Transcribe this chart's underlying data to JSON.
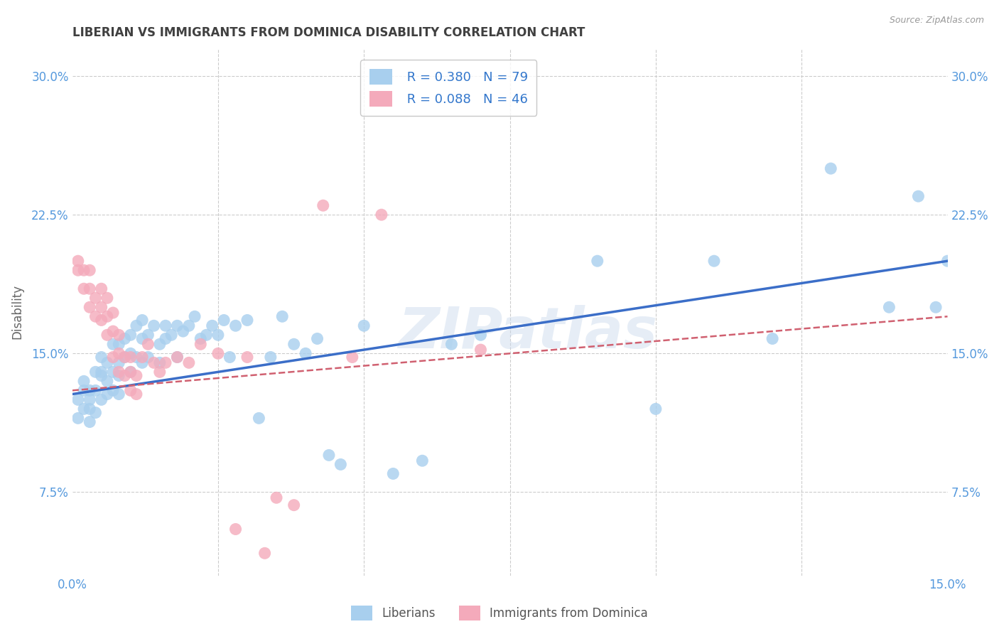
{
  "title": "LIBERIAN VS IMMIGRANTS FROM DOMINICA DISABILITY CORRELATION CHART",
  "source": "Source: ZipAtlas.com",
  "ylabel": "Disability",
  "xlabel": "",
  "xlim": [
    0.0,
    0.15
  ],
  "ylim": [
    0.03,
    0.315
  ],
  "xticks": [
    0.0,
    0.025,
    0.05,
    0.075,
    0.1,
    0.125,
    0.15
  ],
  "yticks": [
    0.075,
    0.15,
    0.225,
    0.3
  ],
  "ytick_labels": [
    "7.5%",
    "15.0%",
    "22.5%",
    "30.0%"
  ],
  "xtick_labels": [
    "0.0%",
    "",
    "",
    "",
    "",
    "",
    "15.0%"
  ],
  "watermark": "ZIPatlas",
  "blue_R": 0.38,
  "blue_N": 79,
  "pink_R": 0.088,
  "pink_N": 46,
  "blue_color": "#A8CFEE",
  "pink_color": "#F4AABB",
  "blue_line_color": "#3B6EC8",
  "pink_line_color": "#D06070",
  "background_color": "#FFFFFF",
  "grid_color": "#CCCCCC",
  "title_color": "#404040",
  "axis_color": "#5599DD",
  "blue_scatter_x": [
    0.001,
    0.001,
    0.002,
    0.002,
    0.002,
    0.003,
    0.003,
    0.003,
    0.003,
    0.004,
    0.004,
    0.004,
    0.005,
    0.005,
    0.005,
    0.005,
    0.006,
    0.006,
    0.006,
    0.007,
    0.007,
    0.007,
    0.008,
    0.008,
    0.008,
    0.008,
    0.009,
    0.009,
    0.01,
    0.01,
    0.01,
    0.011,
    0.011,
    0.012,
    0.012,
    0.012,
    0.013,
    0.013,
    0.014,
    0.015,
    0.015,
    0.016,
    0.016,
    0.017,
    0.018,
    0.018,
    0.019,
    0.02,
    0.021,
    0.022,
    0.023,
    0.024,
    0.025,
    0.026,
    0.027,
    0.028,
    0.03,
    0.032,
    0.034,
    0.036,
    0.038,
    0.04,
    0.042,
    0.044,
    0.046,
    0.05,
    0.055,
    0.06,
    0.065,
    0.07,
    0.09,
    0.1,
    0.11,
    0.12,
    0.13,
    0.14,
    0.145,
    0.148,
    0.15
  ],
  "blue_scatter_y": [
    0.125,
    0.115,
    0.13,
    0.12,
    0.135,
    0.125,
    0.13,
    0.12,
    0.113,
    0.14,
    0.13,
    0.118,
    0.14,
    0.148,
    0.125,
    0.138,
    0.145,
    0.135,
    0.128,
    0.155,
    0.14,
    0.13,
    0.155,
    0.145,
    0.138,
    0.128,
    0.158,
    0.148,
    0.16,
    0.15,
    0.14,
    0.165,
    0.148,
    0.168,
    0.158,
    0.145,
    0.16,
    0.148,
    0.165,
    0.155,
    0.145,
    0.165,
    0.158,
    0.16,
    0.165,
    0.148,
    0.162,
    0.165,
    0.17,
    0.158,
    0.16,
    0.165,
    0.16,
    0.168,
    0.148,
    0.165,
    0.168,
    0.115,
    0.148,
    0.17,
    0.155,
    0.15,
    0.158,
    0.095,
    0.09,
    0.165,
    0.085,
    0.092,
    0.155,
    0.16,
    0.2,
    0.12,
    0.2,
    0.158,
    0.25,
    0.175,
    0.235,
    0.175,
    0.2
  ],
  "pink_scatter_x": [
    0.001,
    0.001,
    0.002,
    0.002,
    0.003,
    0.003,
    0.003,
    0.004,
    0.004,
    0.005,
    0.005,
    0.005,
    0.006,
    0.006,
    0.006,
    0.007,
    0.007,
    0.007,
    0.008,
    0.008,
    0.008,
    0.009,
    0.009,
    0.01,
    0.01,
    0.01,
    0.011,
    0.011,
    0.012,
    0.013,
    0.014,
    0.015,
    0.016,
    0.018,
    0.02,
    0.022,
    0.025,
    0.028,
    0.03,
    0.033,
    0.035,
    0.038,
    0.043,
    0.048,
    0.053,
    0.07
  ],
  "pink_scatter_y": [
    0.195,
    0.2,
    0.195,
    0.185,
    0.195,
    0.185,
    0.175,
    0.18,
    0.17,
    0.185,
    0.175,
    0.168,
    0.18,
    0.17,
    0.16,
    0.172,
    0.162,
    0.148,
    0.16,
    0.15,
    0.14,
    0.148,
    0.138,
    0.148,
    0.14,
    0.13,
    0.138,
    0.128,
    0.148,
    0.155,
    0.145,
    0.14,
    0.145,
    0.148,
    0.145,
    0.155,
    0.15,
    0.055,
    0.148,
    0.042,
    0.072,
    0.068,
    0.23,
    0.148,
    0.225,
    0.152
  ],
  "blue_line_y0": 0.128,
  "blue_line_y1": 0.2,
  "pink_line_y0": 0.13,
  "pink_line_y1": 0.17
}
